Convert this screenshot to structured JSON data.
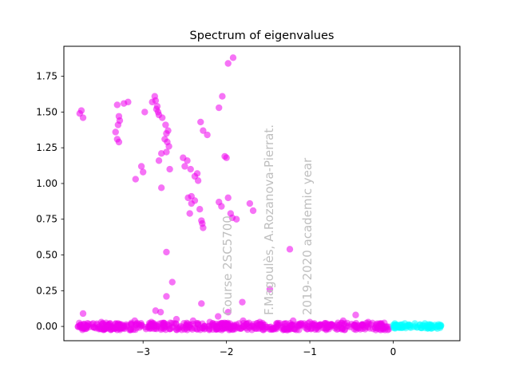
{
  "chart_data": {
    "type": "scatter",
    "title": "Spectrum of eigenvalues",
    "xlabel": "",
    "ylabel": "",
    "xlim": [
      -3.95,
      0.8
    ],
    "ylim": [
      -0.1,
      1.96
    ],
    "grid": false,
    "x_ticks": [
      -3,
      -2,
      -1,
      0
    ],
    "y_ticks": [
      0.0,
      0.25,
      0.5,
      0.75,
      1.0,
      1.25,
      1.5,
      1.75
    ],
    "x_tick_labels": [
      "−3",
      "−2",
      "−1",
      "0"
    ],
    "y_tick_labels": [
      "0.00",
      "0.25",
      "0.50",
      "0.75",
      "1.00",
      "1.25",
      "1.50",
      "1.75"
    ],
    "colors": {
      "magenta": "#ee00ee",
      "cyan": "#00ffff"
    },
    "series": [
      {
        "color": "magenta",
        "points": [
          [
            -1.92,
            1.88
          ],
          [
            -1.98,
            1.84
          ],
          [
            -2.05,
            1.61
          ],
          [
            -2.09,
            1.53
          ],
          [
            -2.86,
            1.61
          ],
          [
            -2.85,
            1.58
          ],
          [
            -2.89,
            1.57
          ],
          [
            -3.18,
            1.57
          ],
          [
            -3.23,
            1.56
          ],
          [
            -2.83,
            1.54
          ],
          [
            -2.84,
            1.52
          ],
          [
            -2.82,
            1.5
          ],
          [
            -3.31,
            1.55
          ],
          [
            -3.74,
            1.51
          ],
          [
            -3.76,
            1.49
          ],
          [
            -3.72,
            1.46
          ],
          [
            -3.29,
            1.47
          ],
          [
            -3.28,
            1.44
          ],
          [
            -3.3,
            1.41
          ],
          [
            -2.81,
            1.48
          ],
          [
            -2.77,
            1.46
          ],
          [
            -2.73,
            1.41
          ],
          [
            -3.33,
            1.36
          ],
          [
            -3.31,
            1.31
          ],
          [
            -3.29,
            1.29
          ],
          [
            -2.7,
            1.37
          ],
          [
            -2.72,
            1.35
          ],
          [
            -2.74,
            1.31
          ],
          [
            -2.71,
            1.29
          ],
          [
            -2.69,
            1.26
          ],
          [
            -2.72,
            1.22
          ],
          [
            -2.78,
            1.21
          ],
          [
            -2.81,
            1.16
          ],
          [
            -2.31,
            1.43
          ],
          [
            -2.28,
            1.37
          ],
          [
            -2.23,
            1.34
          ],
          [
            -2.52,
            1.18
          ],
          [
            -2.47,
            1.16
          ],
          [
            -2.43,
            1.1
          ],
          [
            -2.5,
            1.12
          ],
          [
            -2.35,
            1.07
          ],
          [
            -2.38,
            1.05
          ],
          [
            -2.34,
            1.02
          ],
          [
            -3.02,
            1.12
          ],
          [
            -3.0,
            1.08
          ],
          [
            -3.09,
            1.03
          ],
          [
            -2.68,
            1.1
          ],
          [
            -2.78,
            0.97
          ],
          [
            -2.98,
            1.5
          ],
          [
            -2.46,
            0.9
          ],
          [
            -2.42,
            0.91
          ],
          [
            -2.38,
            0.88
          ],
          [
            -2.42,
            0.86
          ],
          [
            -2.44,
            0.79
          ],
          [
            -2.32,
            0.82
          ],
          [
            -2.3,
            0.74
          ],
          [
            -2.29,
            0.72
          ],
          [
            -2.28,
            0.69
          ],
          [
            -2.02,
            1.19
          ],
          [
            -2.0,
            1.18
          ],
          [
            -1.98,
            0.9
          ],
          [
            -2.09,
            0.87
          ],
          [
            -2.06,
            0.84
          ],
          [
            -1.95,
            0.79
          ],
          [
            -1.93,
            0.76
          ],
          [
            -1.88,
            0.75
          ],
          [
            -1.72,
            0.86
          ],
          [
            -1.68,
            0.81
          ],
          [
            -2.72,
            0.52
          ],
          [
            -2.65,
            0.31
          ],
          [
            -2.72,
            0.21
          ],
          [
            -2.85,
            0.11
          ],
          [
            -2.79,
            0.1
          ],
          [
            -2.3,
            0.16
          ],
          [
            -1.81,
            0.17
          ],
          [
            -1.48,
            0.26
          ],
          [
            -1.24,
            0.54
          ],
          [
            -1.98,
            0.1
          ],
          [
            -2.1,
            0.07
          ],
          [
            -3.72,
            0.09
          ],
          [
            -3.6,
            0.02
          ],
          [
            -3.7,
            0.01
          ],
          [
            -3.5,
            0.03
          ],
          [
            -3.3,
            0.02
          ],
          [
            -3.1,
            0.04
          ],
          [
            -2.9,
            0.03
          ],
          [
            -2.6,
            0.05
          ],
          [
            -2.4,
            0.04
          ],
          [
            -2.2,
            0.03
          ],
          [
            -2.0,
            0.02
          ],
          [
            -1.8,
            0.04
          ],
          [
            -1.6,
            0.03
          ],
          [
            -1.4,
            0.02
          ],
          [
            -1.2,
            0.04
          ],
          [
            -1.0,
            0.03
          ],
          [
            -0.8,
            0.02
          ],
          [
            -0.6,
            0.04
          ],
          [
            -0.45,
            0.08
          ],
          [
            -0.3,
            0.03
          ],
          [
            -0.15,
            0.02
          ]
        ]
      },
      {
        "color": "cyan",
        "points": [
          [
            0.02,
            0.02
          ],
          [
            0.08,
            0.01
          ],
          [
            0.14,
            0.02
          ],
          [
            0.2,
            0.01
          ],
          [
            0.26,
            0.02
          ],
          [
            0.32,
            0.01
          ],
          [
            0.38,
            0.02
          ],
          [
            0.44,
            0.01
          ],
          [
            0.5,
            0.01
          ],
          [
            0.56,
            0.0
          ]
        ]
      }
    ]
  },
  "watermarks": [
    "Course 2SC5700",
    "F.Magoulès, A.Rozanova-Pierrat.",
    "2019-2020 academic year"
  ]
}
